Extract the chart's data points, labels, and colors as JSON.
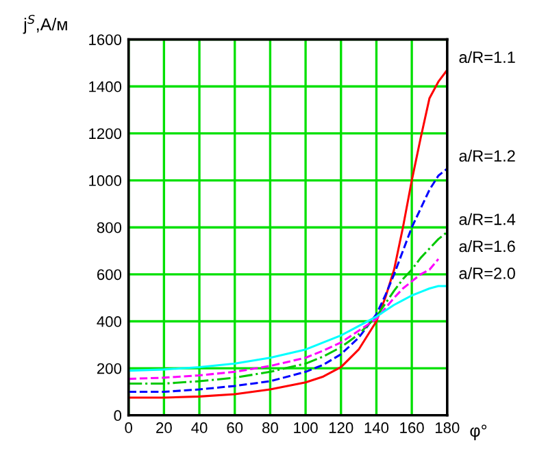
{
  "chart_data": {
    "type": "line",
    "ylabel": "j$^{S}$,A/м",
    "xlabel": "φ°",
    "x": [
      0,
      20,
      40,
      60,
      80,
      100,
      110,
      120,
      130,
      140,
      145,
      150,
      155,
      160,
      165,
      170,
      175,
      180
    ],
    "xlim": [
      0,
      180
    ],
    "xticks": [
      0,
      20,
      40,
      60,
      80,
      100,
      120,
      140,
      160,
      180
    ],
    "ylim": [
      0,
      1600
    ],
    "yticks": [
      0,
      200,
      400,
      600,
      800,
      1000,
      1200,
      1400,
      1600
    ],
    "grid": true,
    "legend": false,
    "series": [
      {
        "name": "a/R=1.1",
        "color": "#ff0000",
        "line_style": "solid",
        "values": [
          75,
          75,
          80,
          90,
          110,
          140,
          165,
          205,
          280,
          400,
          500,
          620,
          800,
          1000,
          1180,
          1350,
          1420,
          1470
        ]
      },
      {
        "name": "a/R=1.2",
        "color": "#0000ff",
        "line_style": "dashed",
        "values": [
          100,
          100,
          110,
          125,
          145,
          185,
          215,
          260,
          330,
          430,
          510,
          600,
          700,
          800,
          880,
          960,
          1020,
          1050
        ]
      },
      {
        "name": "a/R=1.4",
        "color": "#00c800",
        "line_style": "dashdot",
        "values": [
          135,
          135,
          145,
          160,
          185,
          220,
          250,
          290,
          345,
          420,
          475,
          530,
          580,
          620,
          670,
          710,
          750,
          780
        ]
      },
      {
        "name": "a/R=1.6",
        "color": "#ff00ff",
        "line_style": "dashed",
        "values": [
          155,
          160,
          170,
          185,
          210,
          245,
          275,
          310,
          360,
          410,
          455,
          500,
          540,
          570,
          600,
          620,
          665,
          null
        ]
      },
      {
        "name": "a/R=2.0",
        "color": "#00ffff",
        "line_style": "solid",
        "values": [
          190,
          195,
          205,
          220,
          245,
          280,
          310,
          340,
          380,
          420,
          445,
          470,
          490,
          510,
          525,
          540,
          550,
          550
        ]
      }
    ]
  }
}
